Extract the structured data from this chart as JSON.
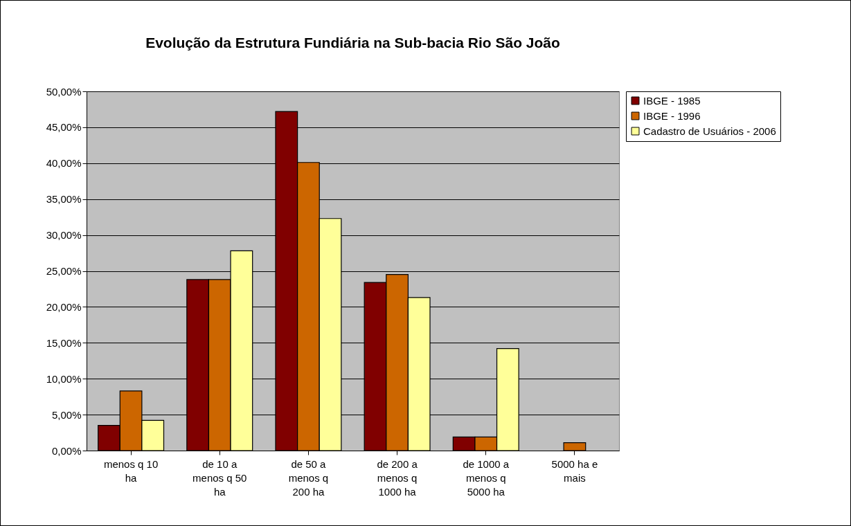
{
  "chart_data": {
    "type": "bar",
    "title": "Evolução da Estrutura Fundiária na Sub-bacia Rio São João",
    "categories": [
      "menos q 10 ha",
      "de 10 a menos q 50 ha",
      "de 50 a menos q 200 ha",
      "de 200 a menos q 1000 ha",
      "de 1000 a menos q 5000 ha",
      "5000 ha e mais"
    ],
    "series": [
      {
        "name": "IBGE - 1985",
        "color": "#800000",
        "values": [
          3.5,
          23.8,
          47.2,
          23.4,
          1.9,
          null
        ]
      },
      {
        "name": "IBGE - 1996",
        "color": "#cc6600",
        "values": [
          8.3,
          23.8,
          40.1,
          24.5,
          1.9,
          1.1
        ]
      },
      {
        "name": "Cadastro de Usuários - 2006",
        "color": "#ffff99",
        "values": [
          4.2,
          27.8,
          32.3,
          21.3,
          14.2,
          null
        ]
      }
    ],
    "ylim": [
      0,
      50
    ],
    "yticks": [
      {
        "value": 0,
        "label": "0,00%"
      },
      {
        "value": 5,
        "label": "5,00%"
      },
      {
        "value": 10,
        "label": "10,00%"
      },
      {
        "value": 15,
        "label": "15,00%"
      },
      {
        "value": 20,
        "label": "20,00%"
      },
      {
        "value": 25,
        "label": "25,00%"
      },
      {
        "value": 30,
        "label": "30,00%"
      },
      {
        "value": 35,
        "label": "35,00%"
      },
      {
        "value": 40,
        "label": "40,00%"
      },
      {
        "value": 45,
        "label": "45,00%"
      },
      {
        "value": 50,
        "label": "50,00%"
      }
    ],
    "grid": "y",
    "legend": "right"
  }
}
